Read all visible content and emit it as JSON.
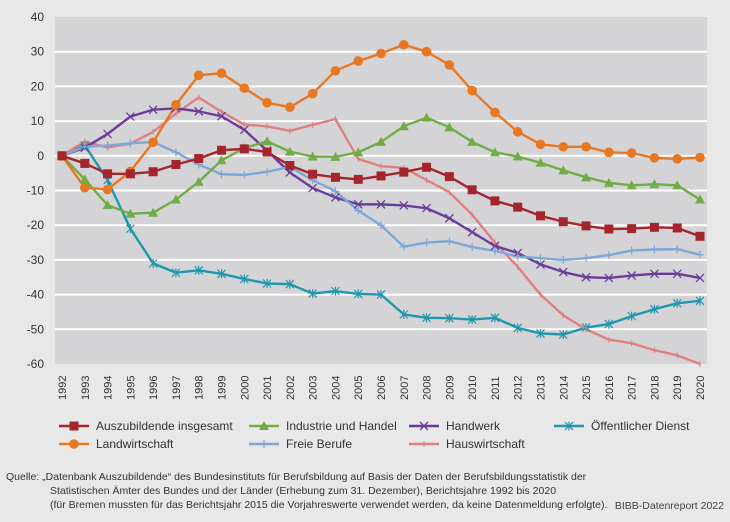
{
  "chart_data": {
    "type": "line",
    "title": "",
    "xlabel": "",
    "ylabel": "",
    "ylim": [
      -60,
      40
    ],
    "yticks": [
      "40",
      "30",
      "20",
      "10",
      "0",
      "-10",
      "-20",
      "-30",
      "-40",
      "-50",
      "-60"
    ],
    "ytick_values": [
      40,
      30,
      20,
      10,
      0,
      -10,
      -20,
      -30,
      -40,
      -50,
      -60
    ],
    "grid": true,
    "legend_position": "bottom",
    "x": [
      "1992",
      "1993",
      "1994",
      "1995",
      "1996",
      "1997",
      "1998",
      "1999",
      "2000",
      "2001",
      "2002",
      "2003",
      "2004",
      "2005",
      "2006",
      "2007",
      "2008",
      "2009",
      "2010",
      "2011",
      "2012",
      "2013",
      "2014",
      "2015",
      "2016",
      "2017",
      "2018",
      "2019",
      "2020"
    ],
    "series": [
      {
        "name": "Auszubildende insgesamt",
        "color": "#a4262c",
        "marker": "square",
        "values": [
          0,
          -2.2,
          -5.2,
          -5.2,
          -4.6,
          -2.5,
          -0.8,
          1.6,
          2.0,
          1.1,
          -2.8,
          -5.3,
          -6.2,
          -6.8,
          -5.8,
          -4.7,
          -3.3,
          -6.0,
          -9.8,
          -13.0,
          -14.8,
          -17.3,
          -19.0,
          -20.2,
          -21.1,
          -21.0,
          -20.6,
          -20.8,
          -23.2
        ]
      },
      {
        "name": "Landwirtschaft",
        "color": "#e87722",
        "marker": "circle",
        "values": [
          0,
          -9.2,
          -9.7,
          -4.5,
          3.9,
          14.7,
          23.2,
          23.8,
          19.5,
          15.3,
          14.0,
          17.9,
          24.5,
          27.3,
          29.5,
          32.0,
          30.0,
          26.2,
          18.8,
          12.5,
          6.9,
          3.3,
          2.6,
          2.6,
          1.0,
          0.8,
          -0.6,
          -0.9,
          -0.5
        ]
      },
      {
        "name": "Industrie und Handel",
        "color": "#70ad47",
        "marker": "triangle",
        "values": [
          0,
          -6.8,
          -14.2,
          -16.7,
          -16.4,
          -12.6,
          -7.5,
          -1.3,
          2.2,
          4.2,
          1.2,
          -0.2,
          -0.3,
          1.0,
          4.0,
          8.5,
          11.0,
          8.2,
          4.0,
          1.0,
          -0.2,
          -2.0,
          -4.2,
          -6.2,
          -7.8,
          -8.5,
          -8.2,
          -8.5,
          -12.6
        ]
      },
      {
        "name": "Freie Berufe",
        "color": "#7ea7d8",
        "marker": "plus",
        "values": [
          0,
          2.6,
          3.0,
          3.6,
          4.0,
          1.0,
          -2.5,
          -5.3,
          -5.5,
          -4.6,
          -3.2,
          -7.0,
          -10.2,
          -15.8,
          -20.0,
          -26.2,
          -25.0,
          -24.6,
          -26.3,
          -27.4,
          -29.0,
          -29.5,
          -30.0,
          -29.5,
          -28.6,
          -27.3,
          -27.0,
          -26.9,
          -28.5
        ]
      },
      {
        "name": "Handwerk",
        "color": "#6a3d9a",
        "marker": "x",
        "values": [
          0,
          2.3,
          6.3,
          11.3,
          13.3,
          13.7,
          12.8,
          11.4,
          7.5,
          1.5,
          -4.8,
          -9.3,
          -12.0,
          -14.0,
          -14.0,
          -14.3,
          -15.1,
          -18.0,
          -22.0,
          -26.0,
          -28.0,
          -31.3,
          -33.5,
          -35.0,
          -35.2,
          -34.5,
          -34.0,
          -34.0,
          -35.2
        ]
      },
      {
        "name": "Hauswirtschaft",
        "color": "#e07f80",
        "marker": "dash",
        "values": [
          0,
          4.1,
          2.4,
          3.5,
          6.9,
          12.2,
          16.8,
          12.7,
          9.0,
          8.5,
          7.2,
          8.9,
          10.6,
          -0.9,
          -3.0,
          -3.5,
          -7.0,
          -10.5,
          -17.0,
          -25.0,
          -32.0,
          -40.0,
          -46.0,
          -50.0,
          -53.0,
          -54.0,
          -56.0,
          -57.5,
          -60.0
        ]
      },
      {
        "name": "Öffentlicher Dienst",
        "color": "#1f98ad",
        "marker": "asterisk",
        "values": [
          0,
          3.0,
          -7.0,
          -21.0,
          -31.0,
          -33.7,
          -33.0,
          -34.0,
          -35.5,
          -36.8,
          -37.0,
          -39.7,
          -39.0,
          -39.8,
          -40.0,
          -45.7,
          -46.7,
          -46.8,
          -47.2,
          -46.7,
          -49.6,
          -51.2,
          -51.5,
          -49.5,
          -48.5,
          -46.2,
          -44.2,
          -42.5,
          -41.8
        ]
      }
    ]
  },
  "footer": {
    "source_line1": "Quelle: „Datenbank Auszubildende“ des Bundesinstituts für Berufsbildung auf Basis der Daten der Berufsbildungsstatistik der",
    "source_line2": "Statistischen Ämter des Bundes und der Länder (Erhebung zum 31. Dezember), Berichtsjahre 1992 bis 2020",
    "source_line3": "(für Bremen mussten für das Berichtsjahr 2015 die Vorjahreswerte verwendet werden, da keine Datenmeldung erfolgte).",
    "credit": "BIBB-Datenreport 2022"
  }
}
